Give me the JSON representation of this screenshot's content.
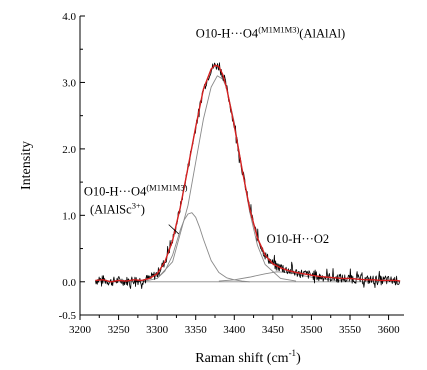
{
  "chart_data": {
    "type": "line",
    "xlabel_main": "Raman shift (cm",
    "xlabel_sup": "-1",
    "xlabel_end": ")",
    "ylabel": "Intensity",
    "xlim": [
      3200,
      3620
    ],
    "ylim": [
      -0.5,
      4.0
    ],
    "xticks": [
      "3200",
      "3250",
      "3300",
      "3350",
      "3400",
      "3450",
      "3500",
      "3550",
      "3600"
    ],
    "yticks": [
      "-0.5",
      "0.0",
      "1.0",
      "2.0",
      "3.0",
      "4.0"
    ],
    "colors": {
      "data": "#000000",
      "fit": "#d41f1f",
      "component": "#8a8a8a"
    },
    "noise_amplitude": 0.07,
    "series": [
      {
        "role": "measured spectrum",
        "x": [
          3220,
          3230,
          3240,
          3250,
          3260,
          3270,
          3280,
          3290,
          3300,
          3310,
          3320,
          3330,
          3340,
          3350,
          3360,
          3370,
          3375,
          3380,
          3385,
          3390,
          3400,
          3410,
          3420,
          3430,
          3440,
          3450,
          3460,
          3470,
          3480,
          3490,
          3500,
          3510,
          3520,
          3530,
          3540,
          3550,
          3560,
          3570,
          3580,
          3590,
          3600,
          3610,
          3615
        ],
        "y": [
          0.02,
          0.03,
          0.0,
          0.02,
          0.01,
          0.03,
          0.02,
          0.05,
          0.12,
          0.3,
          0.62,
          1.12,
          1.72,
          2.33,
          2.9,
          3.2,
          3.26,
          3.24,
          3.12,
          2.92,
          2.35,
          1.7,
          1.1,
          0.66,
          0.4,
          0.27,
          0.21,
          0.17,
          0.14,
          0.12,
          0.1,
          0.08,
          0.07,
          0.06,
          0.05,
          0.05,
          0.04,
          0.03,
          0.03,
          0.02,
          0.02,
          0.02,
          0.01
        ]
      },
      {
        "role": "envelope fit",
        "x": [
          3220,
          3230,
          3240,
          3250,
          3260,
          3270,
          3280,
          3290,
          3300,
          3310,
          3320,
          3330,
          3340,
          3350,
          3360,
          3370,
          3375,
          3380,
          3385,
          3390,
          3400,
          3410,
          3420,
          3430,
          3440,
          3450,
          3460,
          3470,
          3480,
          3490,
          3500,
          3510,
          3520,
          3530,
          3540,
          3550,
          3560,
          3570,
          3580,
          3590,
          3600,
          3610,
          3615
        ],
        "y": [
          0.02,
          0.03,
          0.0,
          0.02,
          0.01,
          0.03,
          0.02,
          0.05,
          0.12,
          0.3,
          0.62,
          1.12,
          1.72,
          2.33,
          2.9,
          3.2,
          3.26,
          3.24,
          3.12,
          2.92,
          2.35,
          1.7,
          1.1,
          0.66,
          0.4,
          0.27,
          0.21,
          0.17,
          0.14,
          0.12,
          0.1,
          0.08,
          0.07,
          0.06,
          0.05,
          0.05,
          0.04,
          0.03,
          0.03,
          0.02,
          0.02,
          0.02,
          0.01
        ]
      },
      {
        "role": "component band",
        "x": [
          3300,
          3310,
          3320,
          3330,
          3335,
          3340,
          3345,
          3350,
          3355,
          3360,
          3370,
          3380,
          3390,
          3400,
          3410,
          3420
        ],
        "y": [
          0.05,
          0.16,
          0.4,
          0.78,
          0.93,
          1.02,
          1.04,
          0.97,
          0.82,
          0.64,
          0.32,
          0.14,
          0.06,
          0.03,
          0.01,
          0.0
        ]
      },
      {
        "role": "component band",
        "x": [
          3280,
          3300,
          3320,
          3340,
          3350,
          3360,
          3370,
          3378,
          3385,
          3390,
          3400,
          3410,
          3420,
          3430,
          3440,
          3460,
          3480
        ],
        "y": [
          0.0,
          0.05,
          0.3,
          1.15,
          1.8,
          2.45,
          2.93,
          3.1,
          3.05,
          2.92,
          2.4,
          1.7,
          1.05,
          0.55,
          0.26,
          0.05,
          0.01
        ]
      },
      {
        "role": "component band",
        "x": [
          3380,
          3400,
          3420,
          3440,
          3455,
          3470,
          3490,
          3510,
          3530,
          3550
        ],
        "y": [
          0.01,
          0.03,
          0.07,
          0.12,
          0.15,
          0.14,
          0.09,
          0.05,
          0.02,
          0.01
        ]
      }
    ],
    "baseline": {
      "x": [
        3220,
        3615
      ],
      "y": [
        0.0,
        0.0
      ]
    },
    "annotations": [
      {
        "text": "O10-H···O4",
        "sup": "(M1M1M3)",
        "tail": "(AlAlAl)",
        "x": 3350,
        "y": 3.68
      },
      {
        "text": "O10-H···O4",
        "sup": "(M1M1M3)",
        "x": 3205,
        "y": 1.3
      },
      {
        "text": "(AlAlSc",
        "sup": "3+",
        "tail": ")",
        "x": 3213,
        "y": 1.03
      },
      {
        "text": "O10-H···O2",
        "x": 3442,
        "y": 0.58
      }
    ],
    "leader": {
      "from": [
        3315,
        0.86
      ],
      "to": [
        3328,
        0.72
      ]
    }
  }
}
